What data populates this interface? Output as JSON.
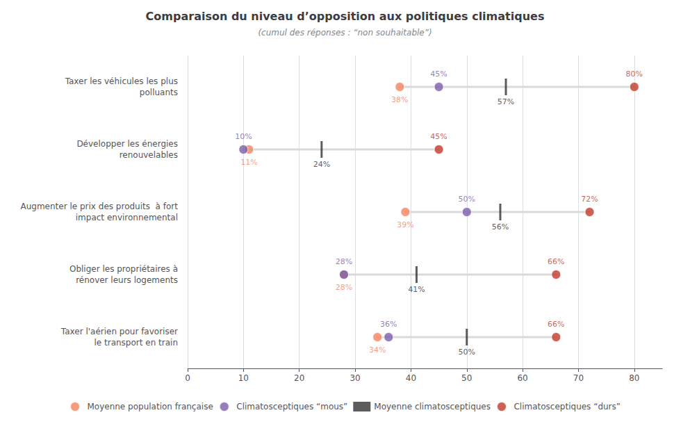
{
  "chart_data": {
    "type": "dumbbell",
    "orientation": "horizontal",
    "title": "Comparaison du niveau d’opposition aux politiques climatiques",
    "subtitle": "(cumul des réponses : “non souhaitable”)",
    "categories": [
      "Taxer les véhicules les plus\npolluants",
      "Développer les énergies\nrenouvelables",
      "Augmenter le prix des produits  à fort\nimpact environnemental",
      "Obliger les propriétaires à\nrénover leurs logements",
      "Taxer l'aérien pour favoriser\nle transport en train"
    ],
    "series": [
      {
        "name": "Moyenne population française",
        "color": "#F4845F",
        "marker": "circle",
        "values": [
          38,
          11,
          39,
          28,
          34
        ],
        "value_labels": [
          "38%",
          "11%",
          "39%",
          "28%",
          "34%"
        ]
      },
      {
        "name": "Climatosceptiques “mous”",
        "color": "#7B5EA7",
        "marker": "circle",
        "values": [
          45,
          10,
          50,
          28,
          36
        ],
        "value_labels": [
          "45%",
          "10%",
          "50%",
          "28%",
          "36%"
        ]
      },
      {
        "name": "Moyenne climatosceptiques",
        "color": "#333333",
        "marker": "tick",
        "values": [
          57,
          24,
          56,
          41,
          50
        ],
        "value_labels": [
          "57%",
          "24%",
          "56%",
          "41%",
          "50%"
        ]
      },
      {
        "name": "Climatosceptiques “durs”",
        "color": "#C0392B",
        "marker": "circle",
        "values": [
          80,
          45,
          72,
          66,
          66
        ],
        "value_labels": [
          "80%",
          "45%",
          "72%",
          "66%",
          "66%"
        ]
      }
    ],
    "xlim": [
      0,
      85
    ],
    "xticks": [
      0,
      10,
      20,
      30,
      40,
      50,
      60,
      70,
      80
    ],
    "grid": true,
    "legend": "bottom",
    "data_labels": true
  }
}
